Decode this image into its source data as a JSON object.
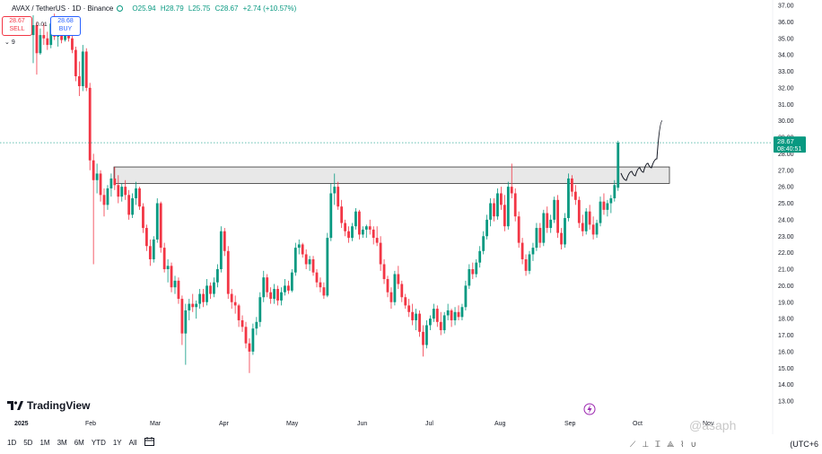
{
  "header": {
    "symbol": "AVAX / TetherUS · 1D · Binance",
    "open": "O25.94",
    "high": "H28.79",
    "low": "L25.75",
    "close": "C28.67",
    "change": "+2.74 (+10.57%)"
  },
  "trade": {
    "sell_price": "28.67",
    "sell_label": "SELL",
    "spread": "0.01",
    "buy_price": "28.68",
    "buy_label": "BUY"
  },
  "indicator_count": "9",
  "price_badge": {
    "price": "28.67",
    "countdown": "08:40:51"
  },
  "timeframes": [
    "1D",
    "5D",
    "1M",
    "3M",
    "6M",
    "YTD",
    "1Y",
    "All"
  ],
  "branding": {
    "logo_text": "TradingView",
    "watermark": "@asaph"
  },
  "timezone": "(UTC+6",
  "colors": {
    "up": "#089981",
    "down": "#f23645",
    "zone": "#e0e0e0",
    "grid": "#f0f3fa"
  },
  "chart_data": {
    "type": "candlestick",
    "title": "AVAX / TetherUS · 1D · Binance",
    "y_ticks": [
      13,
      14,
      15,
      16,
      17,
      18,
      19,
      20,
      21,
      22,
      23,
      24,
      25,
      26,
      27,
      28,
      29,
      30,
      31,
      32,
      33,
      34,
      35,
      36,
      37
    ],
    "ylim": [
      12.5,
      37.5
    ],
    "x_ticks": [
      "2025",
      "Feb",
      "Mar",
      "Apr",
      "May",
      "Jun",
      "Jul",
      "Aug",
      "Sep",
      "Oct",
      "Nov"
    ],
    "last_price": 28.67,
    "resistance_zone": [
      26.2,
      27.2
    ],
    "projection": "wave path up from zone to ~30",
    "candles": [
      {
        "o": 35.2,
        "h": 36.4,
        "l": 33.5,
        "c": 35.8
      },
      {
        "o": 35.8,
        "h": 36.0,
        "l": 32.8,
        "c": 34.1
      },
      {
        "o": 34.1,
        "h": 35.6,
        "l": 34.0,
        "c": 35.2
      },
      {
        "o": 35.2,
        "h": 35.9,
        "l": 34.6,
        "c": 35.0
      },
      {
        "o": 35.0,
        "h": 35.4,
        "l": 34.3,
        "c": 34.6
      },
      {
        "o": 34.6,
        "h": 36.2,
        "l": 34.4,
        "c": 35.9
      },
      {
        "o": 35.9,
        "h": 36.5,
        "l": 34.9,
        "c": 35.1
      },
      {
        "o": 35.1,
        "h": 35.8,
        "l": 34.5,
        "c": 35.4
      },
      {
        "o": 35.4,
        "h": 35.6,
        "l": 34.7,
        "c": 34.9
      },
      {
        "o": 34.9,
        "h": 35.8,
        "l": 34.8,
        "c": 35.6
      },
      {
        "o": 35.6,
        "h": 35.7,
        "l": 34.8,
        "c": 35.0
      },
      {
        "o": 35.0,
        "h": 35.6,
        "l": 34.1,
        "c": 34.3
      },
      {
        "o": 34.3,
        "h": 34.5,
        "l": 32.4,
        "c": 32.7
      },
      {
        "o": 32.7,
        "h": 33.6,
        "l": 31.5,
        "c": 32.1
      },
      {
        "o": 32.1,
        "h": 34.6,
        "l": 31.8,
        "c": 34.2
      },
      {
        "o": 34.2,
        "h": 34.4,
        "l": 31.8,
        "c": 32.0
      },
      {
        "o": 32.0,
        "h": 32.3,
        "l": 27.0,
        "c": 27.6
      },
      {
        "o": 27.6,
        "h": 28.0,
        "l": 21.3,
        "c": 26.4
      },
      {
        "o": 26.4,
        "h": 27.4,
        "l": 25.6,
        "c": 26.8
      },
      {
        "o": 26.8,
        "h": 27.0,
        "l": 25.1,
        "c": 25.5
      },
      {
        "o": 25.5,
        "h": 25.9,
        "l": 24.2,
        "c": 24.9
      },
      {
        "o": 24.9,
        "h": 26.1,
        "l": 24.6,
        "c": 25.9
      },
      {
        "o": 25.9,
        "h": 26.8,
        "l": 25.4,
        "c": 26.5
      },
      {
        "o": 26.5,
        "h": 27.2,
        "l": 25.8,
        "c": 26.1
      },
      {
        "o": 26.1,
        "h": 26.7,
        "l": 25.0,
        "c": 25.4
      },
      {
        "o": 25.4,
        "h": 26.2,
        "l": 25.1,
        "c": 26.0
      },
      {
        "o": 26.0,
        "h": 26.4,
        "l": 25.2,
        "c": 25.5
      },
      {
        "o": 25.5,
        "h": 25.8,
        "l": 24.0,
        "c": 24.3
      },
      {
        "o": 24.3,
        "h": 25.6,
        "l": 24.1,
        "c": 25.3
      },
      {
        "o": 25.3,
        "h": 26.3,
        "l": 24.9,
        "c": 25.9
      },
      {
        "o": 25.9,
        "h": 26.0,
        "l": 24.6,
        "c": 24.8
      },
      {
        "o": 24.8,
        "h": 25.0,
        "l": 23.2,
        "c": 23.5
      },
      {
        "o": 23.5,
        "h": 23.7,
        "l": 22.1,
        "c": 22.4
      },
      {
        "o": 22.4,
        "h": 22.8,
        "l": 21.2,
        "c": 21.6
      },
      {
        "o": 21.6,
        "h": 23.0,
        "l": 21.4,
        "c": 22.8
      },
      {
        "o": 22.8,
        "h": 25.3,
        "l": 22.6,
        "c": 25.0
      },
      {
        "o": 25.0,
        "h": 25.1,
        "l": 22.0,
        "c": 22.3
      },
      {
        "o": 22.3,
        "h": 22.6,
        "l": 20.8,
        "c": 21.0
      },
      {
        "o": 21.0,
        "h": 21.6,
        "l": 20.2,
        "c": 21.2
      },
      {
        "o": 21.2,
        "h": 21.4,
        "l": 19.6,
        "c": 19.9
      },
      {
        "o": 19.9,
        "h": 20.6,
        "l": 19.5,
        "c": 20.3
      },
      {
        "o": 20.3,
        "h": 20.5,
        "l": 18.9,
        "c": 19.2
      },
      {
        "o": 19.2,
        "h": 19.4,
        "l": 16.4,
        "c": 17.1
      },
      {
        "o": 17.1,
        "h": 18.9,
        "l": 15.2,
        "c": 18.5
      },
      {
        "o": 18.5,
        "h": 19.2,
        "l": 17.9,
        "c": 18.9
      },
      {
        "o": 18.9,
        "h": 19.5,
        "l": 18.4,
        "c": 18.7
      },
      {
        "o": 18.7,
        "h": 19.1,
        "l": 18.0,
        "c": 18.9
      },
      {
        "o": 18.9,
        "h": 19.8,
        "l": 18.6,
        "c": 19.5
      },
      {
        "o": 19.5,
        "h": 19.8,
        "l": 18.7,
        "c": 19.0
      },
      {
        "o": 19.0,
        "h": 20.4,
        "l": 18.8,
        "c": 20.0
      },
      {
        "o": 20.0,
        "h": 20.2,
        "l": 19.2,
        "c": 19.5
      },
      {
        "o": 19.5,
        "h": 20.5,
        "l": 19.3,
        "c": 20.2
      },
      {
        "o": 20.2,
        "h": 21.3,
        "l": 19.9,
        "c": 21.0
      },
      {
        "o": 21.0,
        "h": 23.6,
        "l": 20.8,
        "c": 23.3
      },
      {
        "o": 23.3,
        "h": 23.5,
        "l": 21.8,
        "c": 22.1
      },
      {
        "o": 22.1,
        "h": 22.4,
        "l": 19.2,
        "c": 19.5
      },
      {
        "o": 19.5,
        "h": 19.8,
        "l": 18.6,
        "c": 19.0
      },
      {
        "o": 19.0,
        "h": 19.4,
        "l": 18.3,
        "c": 18.8
      },
      {
        "o": 18.8,
        "h": 18.9,
        "l": 17.5,
        "c": 17.9
      },
      {
        "o": 17.9,
        "h": 18.2,
        "l": 17.2,
        "c": 17.5
      },
      {
        "o": 17.5,
        "h": 17.8,
        "l": 16.2,
        "c": 16.5
      },
      {
        "o": 16.5,
        "h": 16.8,
        "l": 14.7,
        "c": 16.0
      },
      {
        "o": 16.0,
        "h": 17.7,
        "l": 15.8,
        "c": 17.4
      },
      {
        "o": 17.4,
        "h": 18.1,
        "l": 17.0,
        "c": 17.8
      },
      {
        "o": 17.8,
        "h": 19.6,
        "l": 17.5,
        "c": 19.3
      },
      {
        "o": 19.3,
        "h": 20.9,
        "l": 19.0,
        "c": 20.5
      },
      {
        "o": 20.5,
        "h": 20.7,
        "l": 19.3,
        "c": 19.6
      },
      {
        "o": 19.6,
        "h": 19.9,
        "l": 18.9,
        "c": 19.2
      },
      {
        "o": 19.2,
        "h": 20.1,
        "l": 18.9,
        "c": 19.8
      },
      {
        "o": 19.8,
        "h": 20.0,
        "l": 18.8,
        "c": 19.1
      },
      {
        "o": 19.1,
        "h": 19.9,
        "l": 18.8,
        "c": 19.6
      },
      {
        "o": 19.6,
        "h": 20.4,
        "l": 19.4,
        "c": 20.0
      },
      {
        "o": 20.0,
        "h": 20.3,
        "l": 19.5,
        "c": 19.7
      },
      {
        "o": 19.7,
        "h": 21.0,
        "l": 19.6,
        "c": 20.8
      },
      {
        "o": 20.8,
        "h": 22.6,
        "l": 20.6,
        "c": 22.3
      },
      {
        "o": 22.3,
        "h": 22.8,
        "l": 21.9,
        "c": 22.5
      },
      {
        "o": 22.5,
        "h": 22.6,
        "l": 21.7,
        "c": 21.9
      },
      {
        "o": 21.9,
        "h": 22.2,
        "l": 21.0,
        "c": 21.3
      },
      {
        "o": 21.3,
        "h": 21.8,
        "l": 20.9,
        "c": 21.6
      },
      {
        "o": 21.6,
        "h": 21.8,
        "l": 20.6,
        "c": 20.8
      },
      {
        "o": 20.8,
        "h": 21.0,
        "l": 19.9,
        "c": 20.2
      },
      {
        "o": 20.2,
        "h": 20.5,
        "l": 19.6,
        "c": 19.9
      },
      {
        "o": 19.9,
        "h": 20.2,
        "l": 19.2,
        "c": 19.4
      },
      {
        "o": 19.4,
        "h": 23.2,
        "l": 19.3,
        "c": 22.9
      },
      {
        "o": 22.9,
        "h": 26.2,
        "l": 22.7,
        "c": 25.6
      },
      {
        "o": 25.6,
        "h": 26.8,
        "l": 24.9,
        "c": 26.0
      },
      {
        "o": 26.0,
        "h": 26.3,
        "l": 24.6,
        "c": 24.8
      },
      {
        "o": 24.8,
        "h": 25.2,
        "l": 23.5,
        "c": 23.8
      },
      {
        "o": 23.8,
        "h": 24.0,
        "l": 23.0,
        "c": 23.3
      },
      {
        "o": 23.3,
        "h": 23.6,
        "l": 22.6,
        "c": 22.9
      },
      {
        "o": 22.9,
        "h": 23.8,
        "l": 22.7,
        "c": 23.6
      },
      {
        "o": 23.6,
        "h": 24.7,
        "l": 23.4,
        "c": 24.5
      },
      {
        "o": 24.5,
        "h": 24.6,
        "l": 22.8,
        "c": 23.1
      },
      {
        "o": 23.1,
        "h": 23.6,
        "l": 22.9,
        "c": 23.4
      },
      {
        "o": 23.4,
        "h": 23.7,
        "l": 22.9,
        "c": 23.6
      },
      {
        "o": 23.6,
        "h": 24.0,
        "l": 23.1,
        "c": 23.4
      },
      {
        "o": 23.4,
        "h": 23.6,
        "l": 22.5,
        "c": 22.9
      },
      {
        "o": 22.9,
        "h": 23.6,
        "l": 22.4,
        "c": 22.6
      },
      {
        "o": 22.6,
        "h": 23.0,
        "l": 20.9,
        "c": 21.3
      },
      {
        "o": 21.3,
        "h": 21.6,
        "l": 20.1,
        "c": 20.4
      },
      {
        "o": 20.4,
        "h": 20.6,
        "l": 19.3,
        "c": 19.6
      },
      {
        "o": 19.6,
        "h": 19.9,
        "l": 18.6,
        "c": 19.0
      },
      {
        "o": 19.0,
        "h": 20.9,
        "l": 18.8,
        "c": 20.7
      },
      {
        "o": 20.7,
        "h": 21.2,
        "l": 19.8,
        "c": 20.1
      },
      {
        "o": 20.1,
        "h": 20.3,
        "l": 19.0,
        "c": 19.3
      },
      {
        "o": 19.3,
        "h": 19.5,
        "l": 18.6,
        "c": 18.8
      },
      {
        "o": 18.8,
        "h": 19.2,
        "l": 18.1,
        "c": 18.4
      },
      {
        "o": 18.4,
        "h": 18.9,
        "l": 17.6,
        "c": 17.9
      },
      {
        "o": 17.9,
        "h": 18.6,
        "l": 17.3,
        "c": 18.3
      },
      {
        "o": 18.3,
        "h": 18.5,
        "l": 16.9,
        "c": 17.2
      },
      {
        "o": 17.2,
        "h": 17.6,
        "l": 15.7,
        "c": 16.4
      },
      {
        "o": 16.4,
        "h": 17.9,
        "l": 16.2,
        "c": 17.6
      },
      {
        "o": 17.6,
        "h": 18.2,
        "l": 17.3,
        "c": 18.0
      },
      {
        "o": 18.0,
        "h": 18.9,
        "l": 17.8,
        "c": 18.6
      },
      {
        "o": 18.6,
        "h": 18.8,
        "l": 17.5,
        "c": 17.8
      },
      {
        "o": 17.8,
        "h": 18.4,
        "l": 17.0,
        "c": 17.3
      },
      {
        "o": 17.3,
        "h": 18.4,
        "l": 17.1,
        "c": 18.2
      },
      {
        "o": 18.2,
        "h": 18.9,
        "l": 17.9,
        "c": 18.5
      },
      {
        "o": 18.5,
        "h": 18.6,
        "l": 17.5,
        "c": 17.9
      },
      {
        "o": 17.9,
        "h": 18.7,
        "l": 17.6,
        "c": 18.4
      },
      {
        "o": 18.4,
        "h": 18.8,
        "l": 17.9,
        "c": 18.1
      },
      {
        "o": 18.1,
        "h": 18.9,
        "l": 17.9,
        "c": 18.7
      },
      {
        "o": 18.7,
        "h": 20.3,
        "l": 18.5,
        "c": 20.0
      },
      {
        "o": 20.0,
        "h": 21.3,
        "l": 19.8,
        "c": 21.0
      },
      {
        "o": 21.0,
        "h": 21.4,
        "l": 20.4,
        "c": 20.7
      },
      {
        "o": 20.7,
        "h": 21.6,
        "l": 20.5,
        "c": 21.4
      },
      {
        "o": 21.4,
        "h": 22.4,
        "l": 21.1,
        "c": 22.1
      },
      {
        "o": 22.1,
        "h": 23.3,
        "l": 21.9,
        "c": 23.0
      },
      {
        "o": 23.0,
        "h": 24.3,
        "l": 22.8,
        "c": 24.0
      },
      {
        "o": 24.0,
        "h": 25.3,
        "l": 23.6,
        "c": 25.0
      },
      {
        "o": 25.0,
        "h": 25.3,
        "l": 23.9,
        "c": 24.2
      },
      {
        "o": 24.2,
        "h": 25.9,
        "l": 24.0,
        "c": 25.6
      },
      {
        "o": 25.6,
        "h": 26.0,
        "l": 24.6,
        "c": 24.9
      },
      {
        "o": 24.9,
        "h": 25.5,
        "l": 23.3,
        "c": 23.6
      },
      {
        "o": 23.6,
        "h": 26.3,
        "l": 23.4,
        "c": 26.0
      },
      {
        "o": 26.0,
        "h": 27.4,
        "l": 25.3,
        "c": 25.6
      },
      {
        "o": 25.6,
        "h": 25.9,
        "l": 23.9,
        "c": 24.2
      },
      {
        "o": 24.2,
        "h": 24.5,
        "l": 22.3,
        "c": 22.6
      },
      {
        "o": 22.6,
        "h": 22.9,
        "l": 21.3,
        "c": 21.6
      },
      {
        "o": 21.6,
        "h": 21.9,
        "l": 20.6,
        "c": 20.9
      },
      {
        "o": 20.9,
        "h": 22.1,
        "l": 20.7,
        "c": 21.9
      },
      {
        "o": 21.9,
        "h": 22.6,
        "l": 21.5,
        "c": 22.3
      },
      {
        "o": 22.3,
        "h": 23.8,
        "l": 22.1,
        "c": 23.5
      },
      {
        "o": 23.5,
        "h": 23.8,
        "l": 22.3,
        "c": 22.6
      },
      {
        "o": 22.6,
        "h": 24.6,
        "l": 22.4,
        "c": 24.4
      },
      {
        "o": 24.4,
        "h": 24.8,
        "l": 23.2,
        "c": 23.5
      },
      {
        "o": 23.5,
        "h": 24.3,
        "l": 23.2,
        "c": 24.0
      },
      {
        "o": 24.0,
        "h": 25.4,
        "l": 23.8,
        "c": 25.2
      },
      {
        "o": 25.2,
        "h": 25.5,
        "l": 22.9,
        "c": 23.2
      },
      {
        "o": 23.2,
        "h": 23.5,
        "l": 22.2,
        "c": 22.5
      },
      {
        "o": 22.5,
        "h": 24.4,
        "l": 22.3,
        "c": 24.1
      },
      {
        "o": 24.1,
        "h": 26.8,
        "l": 23.9,
        "c": 26.5
      },
      {
        "o": 26.5,
        "h": 26.7,
        "l": 25.4,
        "c": 25.7
      },
      {
        "o": 25.7,
        "h": 26.1,
        "l": 24.9,
        "c": 25.2
      },
      {
        "o": 25.2,
        "h": 25.4,
        "l": 23.5,
        "c": 23.8
      },
      {
        "o": 23.8,
        "h": 24.3,
        "l": 23.0,
        "c": 23.3
      },
      {
        "o": 23.3,
        "h": 24.7,
        "l": 23.1,
        "c": 24.5
      },
      {
        "o": 24.5,
        "h": 24.9,
        "l": 23.4,
        "c": 23.7
      },
      {
        "o": 23.7,
        "h": 24.2,
        "l": 22.8,
        "c": 23.1
      },
      {
        "o": 23.1,
        "h": 24.0,
        "l": 22.9,
        "c": 23.8
      },
      {
        "o": 23.8,
        "h": 25.4,
        "l": 23.6,
        "c": 25.1
      },
      {
        "o": 25.1,
        "h": 25.6,
        "l": 24.3,
        "c": 24.6
      },
      {
        "o": 24.6,
        "h": 25.2,
        "l": 24.2,
        "c": 25.0
      },
      {
        "o": 25.0,
        "h": 25.5,
        "l": 24.4,
        "c": 25.3
      },
      {
        "o": 25.3,
        "h": 26.4,
        "l": 25.1,
        "c": 26.1
      },
      {
        "o": 25.94,
        "h": 28.79,
        "l": 25.75,
        "c": 28.67
      }
    ]
  }
}
